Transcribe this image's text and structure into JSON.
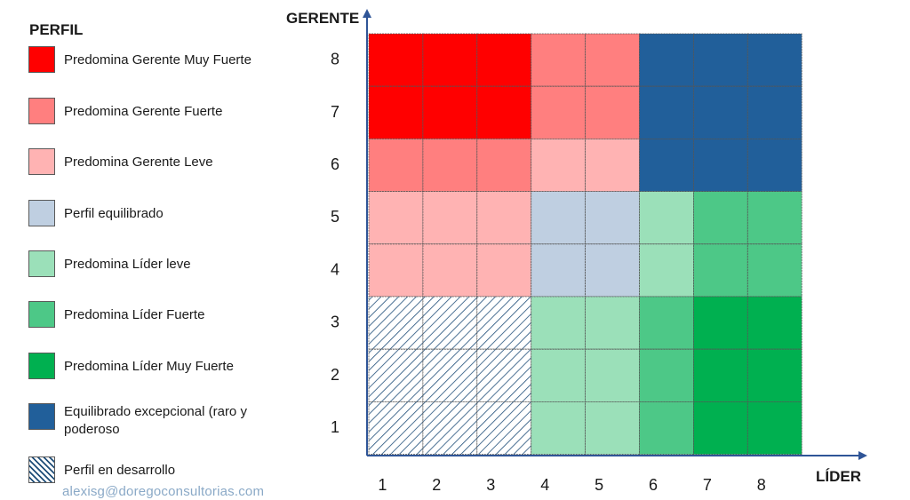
{
  "legend": {
    "title": "PERFIL",
    "items": [
      {
        "key": "gms",
        "label": "Predomina Gerente Muy Fuerte",
        "color": "#ff0000"
      },
      {
        "key": "gf",
        "label": "Predomina Gerente Fuerte",
        "color": "#ff7f7f"
      },
      {
        "key": "gl",
        "label": "Predomina Gerente Leve",
        "color": "#ffb3b3"
      },
      {
        "key": "eq",
        "label": "Perfil equilibrado",
        "color": "#bfcfe1"
      },
      {
        "key": "ll",
        "label": "Predomina Líder leve",
        "color": "#9be0b9"
      },
      {
        "key": "lf",
        "label": "Predomina Líder Fuerte",
        "color": "#4dc887"
      },
      {
        "key": "lms",
        "label": "Predomina Líder Muy Fuerte",
        "color": "#00b050"
      },
      {
        "key": "ex",
        "label": "Equilibrado excepcional (raro y poderoso",
        "color": "#215f9a"
      },
      {
        "key": "dev",
        "label": "Perfil en desarrollo",
        "color": "hatch"
      }
    ]
  },
  "footer": {
    "email": "alexisg@doregoconsultorias.com"
  },
  "chart_data": {
    "type": "heatmap",
    "xlabel": "LÍDER",
    "ylabel": "GERENTE",
    "x": [
      1,
      2,
      3,
      4,
      5,
      6,
      7,
      8
    ],
    "y": [
      1,
      2,
      3,
      4,
      5,
      6,
      7,
      8
    ],
    "colors": {
      "gms": "#ff0000",
      "gf": "#ff7f7f",
      "gl": "#ffb3b3",
      "eq": "#bfcfe1",
      "ll": "#9be0b9",
      "lf": "#4dc887",
      "lms": "#00b050",
      "ex": "#215f9a",
      "dev": "hatch"
    },
    "grid_rows_top_to_bottom": [
      [
        "gms",
        "gms",
        "gms",
        "gf",
        "gf",
        "ex",
        "ex",
        "ex"
      ],
      [
        "gms",
        "gms",
        "gms",
        "gf",
        "gf",
        "ex",
        "ex",
        "ex"
      ],
      [
        "gf",
        "gf",
        "gf",
        "gl",
        "gl",
        "ex",
        "ex",
        "ex"
      ],
      [
        "gl",
        "gl",
        "gl",
        "eq",
        "eq",
        "ll",
        "lf",
        "lf"
      ],
      [
        "gl",
        "gl",
        "gl",
        "eq",
        "eq",
        "ll",
        "lf",
        "lf"
      ],
      [
        "dev",
        "dev",
        "dev",
        "ll",
        "ll",
        "lf",
        "lms",
        "lms"
      ],
      [
        "dev",
        "dev",
        "dev",
        "ll",
        "ll",
        "lf",
        "lms",
        "lms"
      ],
      [
        "dev",
        "dev",
        "dev",
        "ll",
        "ll",
        "lf",
        "lms",
        "lms"
      ]
    ]
  }
}
